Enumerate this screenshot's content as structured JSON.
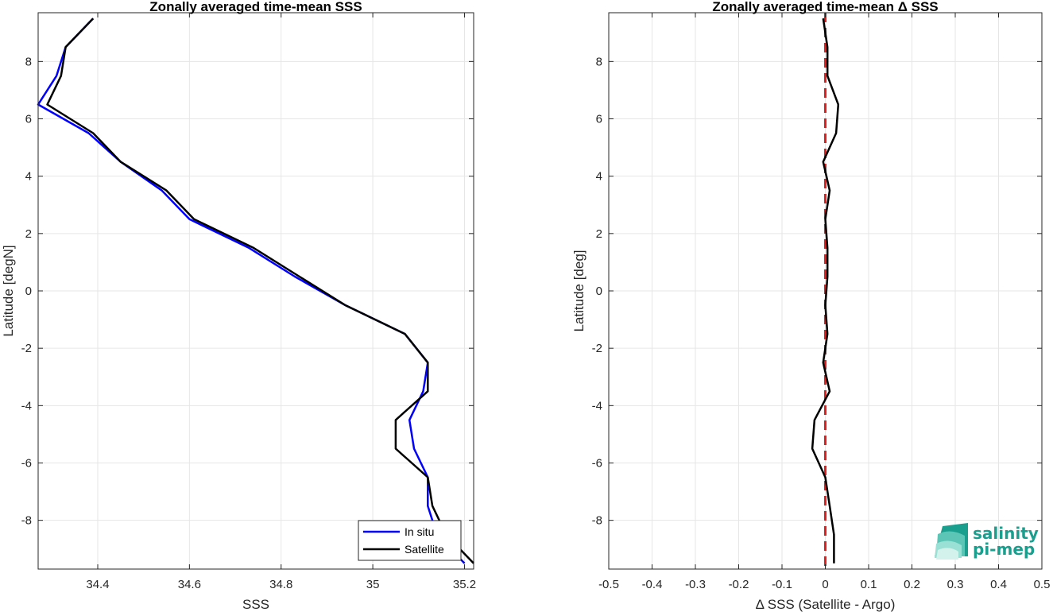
{
  "chart_data": [
    {
      "type": "line",
      "title": "Zonally averaged time-mean SSS",
      "xlabel": "SSS",
      "ylabel": "Latitude [degN]",
      "xlim": [
        34.27,
        35.22
      ],
      "ylim": [
        -9.7,
        9.7
      ],
      "xticks": [
        34.4,
        34.6,
        34.8,
        35,
        35.2
      ],
      "yticks": [
        -8,
        -6,
        -4,
        -2,
        0,
        2,
        4,
        6,
        8
      ],
      "grid": true,
      "legend_location": "bottom-right",
      "series": [
        {
          "name": "In situ",
          "color": "#0000ff",
          "x": [
            34.39,
            34.33,
            34.31,
            34.27,
            34.38,
            34.45,
            34.54,
            34.6,
            34.73,
            34.83,
            34.94,
            35.07,
            35.12,
            35.11,
            35.08,
            35.09,
            35.12,
            35.12,
            35.14,
            35.2
          ],
          "y": [
            9.5,
            8.5,
            7.5,
            6.5,
            5.5,
            4.5,
            3.5,
            2.5,
            1.5,
            0.5,
            -0.5,
            -1.5,
            -2.5,
            -3.5,
            -4.5,
            -5.5,
            -6.5,
            -7.5,
            -8.5,
            -9.5
          ]
        },
        {
          "name": "Satellite",
          "color": "#000000",
          "x": [
            34.39,
            34.33,
            34.32,
            34.29,
            34.39,
            34.45,
            34.55,
            34.61,
            34.74,
            34.84,
            34.94,
            35.07,
            35.12,
            35.12,
            35.05,
            35.05,
            35.12,
            35.13,
            35.16,
            35.22
          ],
          "y": [
            9.5,
            8.5,
            7.5,
            6.5,
            5.5,
            4.5,
            3.5,
            2.5,
            1.5,
            0.5,
            -0.5,
            -1.5,
            -2.5,
            -3.5,
            -4.5,
            -5.5,
            -6.5,
            -7.5,
            -8.5,
            -9.5
          ]
        }
      ]
    },
    {
      "type": "line",
      "title": "Zonally averaged time-mean Δ SSS",
      "xlabel": "Δ SSS (Satellite - Argo)",
      "ylabel": "Latitude [deg]",
      "xlim": [
        -0.5,
        0.5
      ],
      "ylim": [
        -9.7,
        9.7
      ],
      "xticks": [
        -0.5,
        -0.4,
        -0.3,
        -0.2,
        -0.1,
        0,
        0.1,
        0.2,
        0.3,
        0.4,
        0.5
      ],
      "yticks": [
        -8,
        -6,
        -4,
        -2,
        0,
        2,
        4,
        6,
        8
      ],
      "grid": true,
      "reference_line": {
        "x": 0,
        "color": "#e02020",
        "style": "dashed"
      },
      "series": [
        {
          "name": "",
          "color": "#000000",
          "x": [
            -0.005,
            0.005,
            0.005,
            0.03,
            0.025,
            -0.005,
            0.01,
            0.0,
            0.005,
            0.005,
            0.0,
            0.005,
            -0.005,
            0.01,
            -0.025,
            -0.03,
            0.0,
            0.01,
            0.02,
            0.02
          ],
          "y": [
            9.5,
            8.5,
            7.5,
            6.5,
            5.5,
            4.5,
            3.5,
            2.5,
            1.5,
            0.5,
            -0.5,
            -1.5,
            -2.5,
            -3.5,
            -4.5,
            -5.5,
            -6.5,
            -7.5,
            -8.5,
            -9.5
          ]
        }
      ]
    }
  ],
  "logo": {
    "line1": "salinity",
    "line2": "pi-mep",
    "color": "#1a9f8f"
  }
}
